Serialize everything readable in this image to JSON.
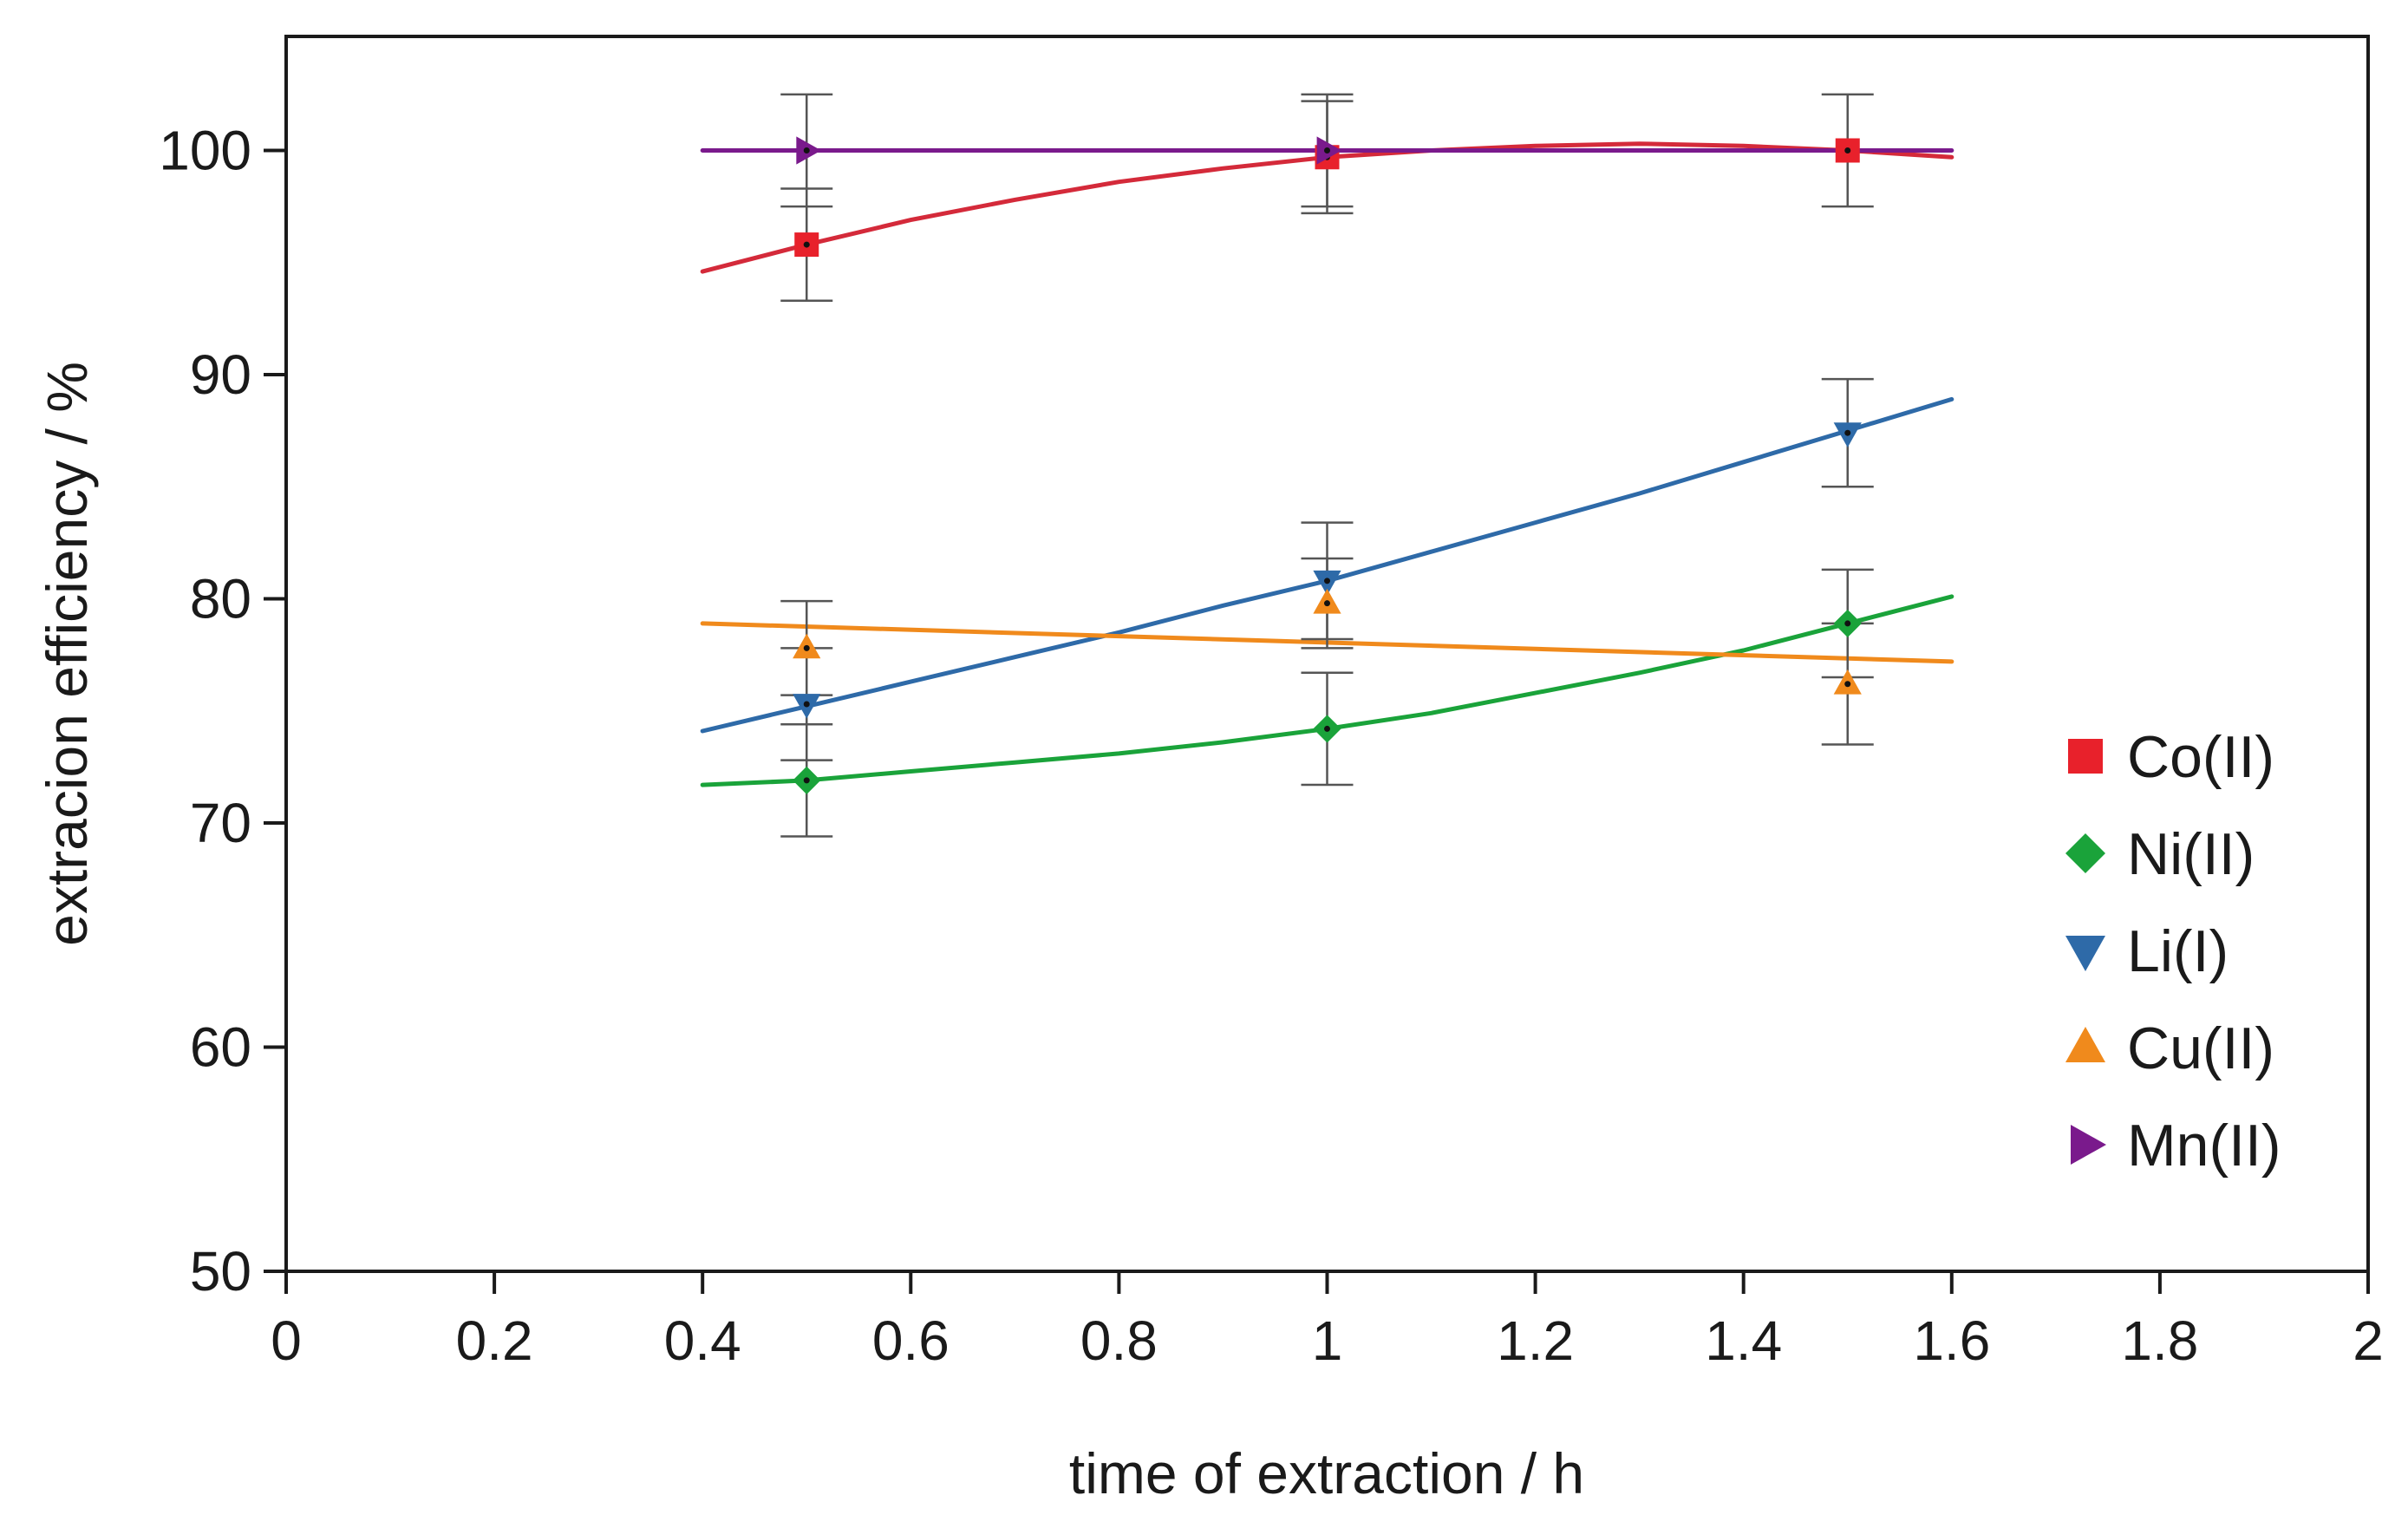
{
  "chart_data": {
    "type": "scatter",
    "title": "",
    "xlabel": "time of extraction / h",
    "ylabel": "extracion efficiency / %",
    "xlim": [
      0,
      2
    ],
    "ylim": [
      50,
      105
    ],
    "xticks": [
      "0",
      "0.2",
      "0.4",
      "0.6",
      "0.8",
      "1",
      "1.2",
      "1.4",
      "1.6",
      "1.8",
      "2"
    ],
    "xtick_values": [
      0,
      0.2,
      0.4,
      0.6,
      0.8,
      1,
      1.2,
      1.4,
      1.6,
      1.8,
      2
    ],
    "yticks": [
      "50",
      "60",
      "70",
      "80",
      "90",
      "100"
    ],
    "ytick_values": [
      50,
      60,
      70,
      80,
      90,
      100
    ],
    "grid": false,
    "legend_position": "right",
    "series": [
      {
        "name": "Co(II)",
        "marker": "square",
        "color": "#e8212b",
        "line_color": "#d42a3a",
        "x": [
          0.5,
          1,
          1.5
        ],
        "y": [
          95.8,
          99.7,
          100.0
        ],
        "err": [
          2.5,
          2.5,
          2.5
        ],
        "fit_x": [
          0.4,
          0.5,
          0.6,
          0.7,
          0.8,
          0.9,
          1.0,
          1.1,
          1.2,
          1.3,
          1.4,
          1.5,
          1.6
        ],
        "fit_y": [
          94.6,
          95.8,
          96.9,
          97.8,
          98.6,
          99.2,
          99.7,
          100.0,
          100.2,
          100.3,
          100.2,
          100.0,
          99.7
        ]
      },
      {
        "name": "Ni(II)",
        "marker": "diamond",
        "color": "#1aa33a",
        "line_color": "#1aa33a",
        "x": [
          0.5,
          1,
          1.5
        ],
        "y": [
          71.9,
          74.2,
          78.9
        ],
        "err": [
          2.5,
          2.5,
          2.4
        ],
        "fit_x": [
          0.4,
          0.5,
          0.6,
          0.7,
          0.8,
          0.9,
          1.0,
          1.1,
          1.2,
          1.3,
          1.4,
          1.5,
          1.6
        ],
        "fit_y": [
          71.7,
          71.9,
          72.3,
          72.7,
          73.1,
          73.6,
          74.2,
          74.9,
          75.8,
          76.7,
          77.7,
          78.9,
          80.1
        ]
      },
      {
        "name": "Li(I)",
        "marker": "triangle-down",
        "color": "#2e6aa8",
        "line_color": "#2e6aa8",
        "x": [
          0.5,
          1,
          1.5
        ],
        "y": [
          75.3,
          80.8,
          87.4
        ],
        "err": [
          2.5,
          2.6,
          2.4
        ],
        "fit_x": [
          0.4,
          0.5,
          0.6,
          0.7,
          0.8,
          0.9,
          1.0,
          1.1,
          1.2,
          1.3,
          1.4,
          1.5,
          1.6
        ],
        "fit_y": [
          74.1,
          75.2,
          76.3,
          77.4,
          78.5,
          79.7,
          80.8,
          82.1,
          83.4,
          84.7,
          86.1,
          87.5,
          88.9
        ]
      },
      {
        "name": "Cu(II)",
        "marker": "triangle-up",
        "color": "#f08a1c",
        "line_color": "#f08a1c",
        "x": [
          0.5,
          1,
          1.5
        ],
        "y": [
          77.8,
          79.8,
          76.2
        ],
        "err": [
          2.1,
          2.0,
          2.7
        ],
        "fit_x": [
          0.4,
          1.6
        ],
        "fit_y": [
          78.9,
          77.2
        ]
      },
      {
        "name": "Mn(II)",
        "marker": "triangle-right",
        "color": "#7a1a8c",
        "line_color": "#7a1a8c",
        "x": [
          0.5,
          1
        ],
        "y": [
          100.0,
          100.0
        ],
        "err": [
          2.5,
          2.5
        ],
        "fit_x": [
          0.4,
          1.6
        ],
        "fit_y": [
          100.0,
          100.0
        ]
      }
    ]
  }
}
